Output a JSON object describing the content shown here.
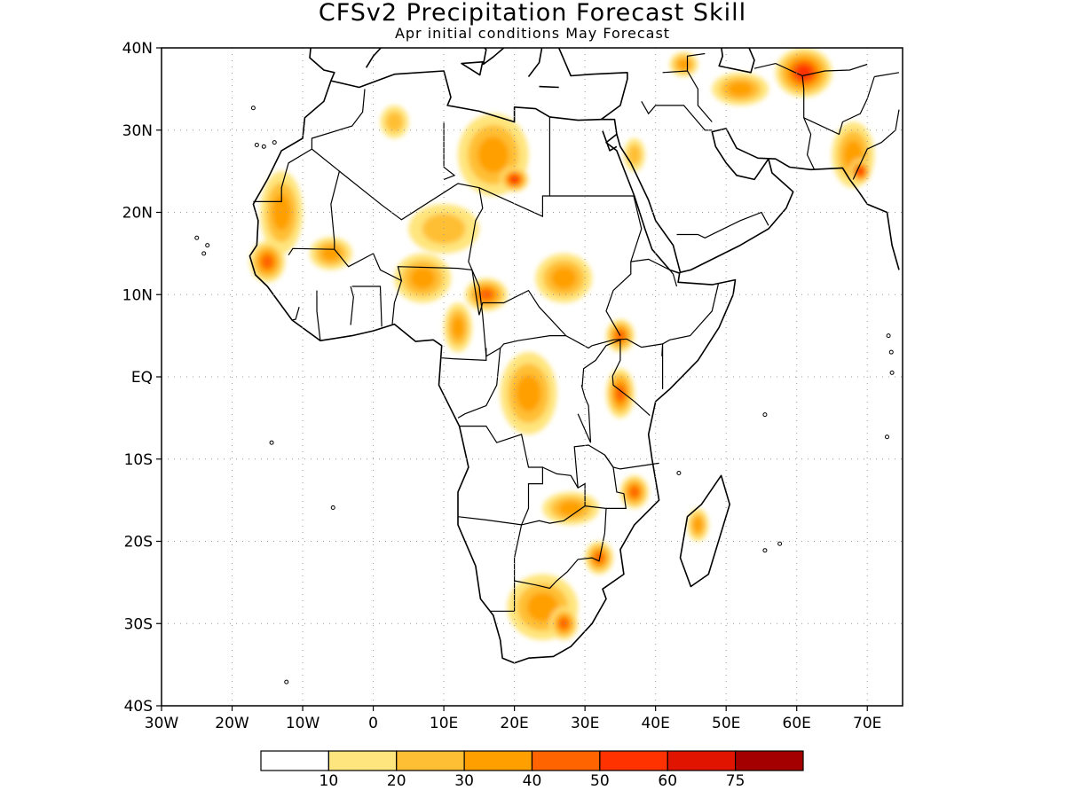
{
  "title": "CFSv2 Precipitation Forecast Skill",
  "subtitle": "Apr initial conditions  May Forecast",
  "map": {
    "lon_range": [
      -30,
      75
    ],
    "lat_range": [
      -40,
      40
    ],
    "lat_ticks": [
      {
        "value": 40,
        "label": "40N"
      },
      {
        "value": 30,
        "label": "30N"
      },
      {
        "value": 20,
        "label": "20N"
      },
      {
        "value": 10,
        "label": "10N"
      },
      {
        "value": 0,
        "label": "EQ"
      },
      {
        "value": -10,
        "label": "10S"
      },
      {
        "value": -20,
        "label": "20S"
      },
      {
        "value": -30,
        "label": "30S"
      },
      {
        "value": -40,
        "label": "40S"
      }
    ],
    "lon_ticks": [
      {
        "value": -30,
        "label": "30W"
      },
      {
        "value": -20,
        "label": "20W"
      },
      {
        "value": -10,
        "label": "10W"
      },
      {
        "value": 0,
        "label": "0"
      },
      {
        "value": 10,
        "label": "10E"
      },
      {
        "value": 20,
        "label": "20E"
      },
      {
        "value": 30,
        "label": "30E"
      },
      {
        "value": 40,
        "label": "40E"
      },
      {
        "value": 50,
        "label": "50E"
      },
      {
        "value": 60,
        "label": "60E"
      },
      {
        "value": 70,
        "label": "70E"
      }
    ],
    "grid": true,
    "skill_areas": [
      {
        "name": "west-sahara",
        "lon": -13,
        "lat": 20,
        "rx": 3,
        "ry": 5,
        "level": 3
      },
      {
        "name": "senegal",
        "lon": -15,
        "lat": 14,
        "rx": 2.5,
        "ry": 2.5,
        "level": 4
      },
      {
        "name": "mali",
        "lon": -6,
        "lat": 15,
        "rx": 3,
        "ry": 2,
        "level": 3
      },
      {
        "name": "algeria-north",
        "lon": 3,
        "lat": 31,
        "rx": 2,
        "ry": 2,
        "level": 2
      },
      {
        "name": "chad-libya",
        "lon": 17,
        "lat": 27,
        "rx": 5,
        "ry": 5,
        "level": 3
      },
      {
        "name": "tibesti",
        "lon": 20,
        "lat": 24,
        "rx": 2,
        "ry": 1.5,
        "level": 5
      },
      {
        "name": "niger",
        "lon": 10,
        "lat": 18,
        "rx": 5,
        "ry": 3,
        "level": 2
      },
      {
        "name": "nigeria",
        "lon": 7,
        "lat": 12,
        "rx": 4,
        "ry": 3,
        "level": 3
      },
      {
        "name": "chad-car",
        "lon": 16,
        "lat": 10,
        "rx": 3,
        "ry": 2,
        "level": 4
      },
      {
        "name": "cameroon",
        "lon": 12,
        "lat": 6,
        "rx": 2,
        "ry": 3,
        "level": 3
      },
      {
        "name": "sudan",
        "lon": 27,
        "lat": 12,
        "rx": 4,
        "ry": 3,
        "level": 3
      },
      {
        "name": "ethiopia-south",
        "lon": 35,
        "lat": 5,
        "rx": 2,
        "ry": 2,
        "level": 4
      },
      {
        "name": "drc",
        "lon": 22,
        "lat": -2,
        "rx": 4,
        "ry": 5,
        "level": 3
      },
      {
        "name": "tanzania",
        "lon": 35,
        "lat": -2,
        "rx": 2,
        "ry": 3,
        "level": 4
      },
      {
        "name": "mozambique-north",
        "lon": 37,
        "lat": -14,
        "rx": 2,
        "ry": 2,
        "level": 4
      },
      {
        "name": "zambia-zimbabwe",
        "lon": 28,
        "lat": -16,
        "rx": 4,
        "ry": 2,
        "level": 3
      },
      {
        "name": "mozambique-south",
        "lon": 32,
        "lat": -22,
        "rx": 2,
        "ry": 2,
        "level": 4
      },
      {
        "name": "madagascar",
        "lon": 46,
        "lat": -18,
        "rx": 1.5,
        "ry": 2,
        "level": 3
      },
      {
        "name": "south-africa",
        "lon": 24,
        "lat": -28,
        "rx": 5,
        "ry": 4,
        "level": 3
      },
      {
        "name": "lesotho",
        "lon": 27,
        "lat": -30,
        "rx": 2,
        "ry": 2,
        "level": 4
      },
      {
        "name": "iran-afghan",
        "lon": 61,
        "lat": 37,
        "rx": 4,
        "ry": 3,
        "level": 5
      },
      {
        "name": "iran-west",
        "lon": 52,
        "lat": 35,
        "rx": 4,
        "ry": 2,
        "level": 3
      },
      {
        "name": "pakistan",
        "lon": 68,
        "lat": 27,
        "rx": 3,
        "ry": 4,
        "level": 3
      },
      {
        "name": "gujarat",
        "lon": 69,
        "lat": 25,
        "rx": 1.5,
        "ry": 1.5,
        "level": 5
      },
      {
        "name": "saudi",
        "lon": 37,
        "lat": 27,
        "rx": 1.5,
        "ry": 2,
        "level": 2
      },
      {
        "name": "turkey",
        "lon": 44,
        "lat": 38,
        "rx": 2,
        "ry": 1.5,
        "level": 3
      }
    ]
  },
  "colorbar": {
    "colors": [
      "#ffffff",
      "#ffe57d",
      "#ffbf35",
      "#ffa000",
      "#ff6400",
      "#ff3200",
      "#e11400",
      "#a50000"
    ],
    "labels": [
      "10",
      "20",
      "30",
      "40",
      "50",
      "60",
      "75"
    ]
  }
}
